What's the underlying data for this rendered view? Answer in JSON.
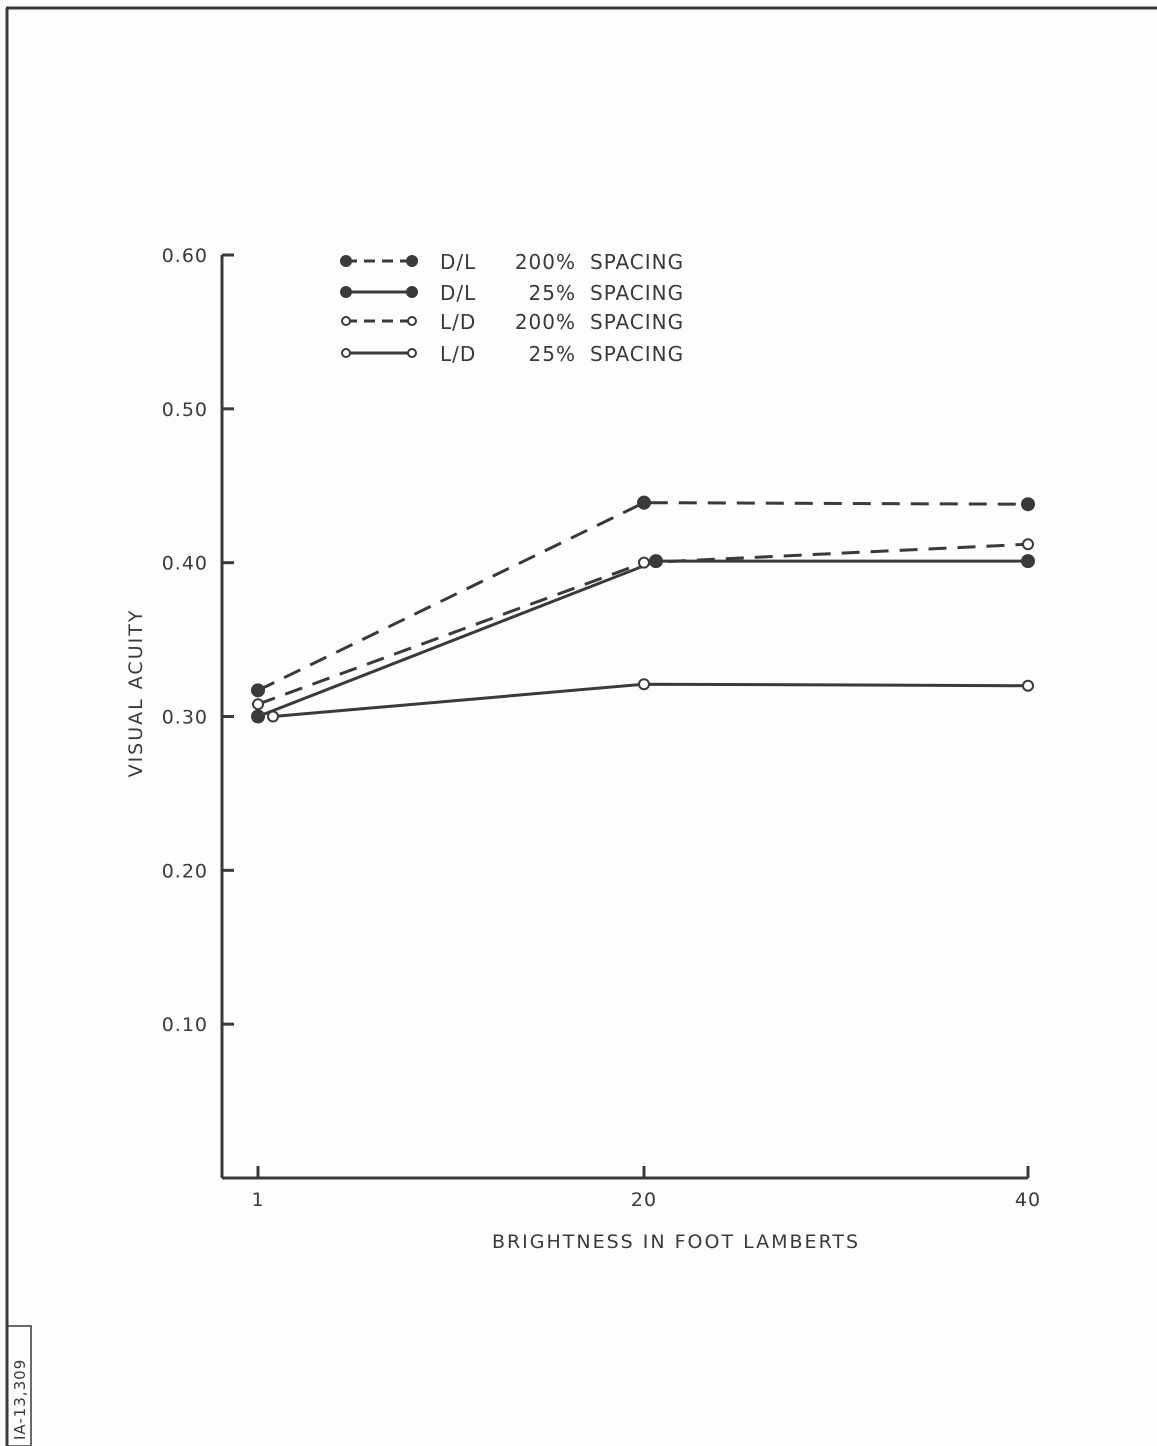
{
  "figure_id": "IA-13,309",
  "chart_data": {
    "type": "line",
    "xlabel": "BRIGHTNESS IN FOOT LAMBERTS",
    "ylabel": "VISUAL ACUITY",
    "categories": [
      "1",
      "20",
      "40"
    ],
    "y_ticks": [
      "0.10",
      "0.20",
      "0.30",
      "0.40",
      "0.50",
      "0.60"
    ],
    "y_tick_values": [
      0.1,
      0.2,
      0.3,
      0.4,
      0.5,
      0.6
    ],
    "ylim": [
      0.0,
      0.6
    ],
    "grid": false,
    "legend_position": "top-left",
    "series": [
      {
        "name": "D/L 200% SPACING",
        "legend_parts": [
          "D/L",
          "200%",
          "SPACING"
        ],
        "values": [
          0.317,
          0.439,
          0.438
        ],
        "line_style": "dashed",
        "marker": "filled-circle"
      },
      {
        "name": "D/L 25% SPACING",
        "legend_parts": [
          "D/L",
          "25%",
          "SPACING"
        ],
        "values": [
          0.3,
          0.401,
          0.401
        ],
        "line_style": "solid",
        "marker": "filled-circle"
      },
      {
        "name": "L/D 200% SPACING",
        "legend_parts": [
          "L/D",
          "200%",
          "SPACING"
        ],
        "values": [
          0.308,
          0.4,
          0.412
        ],
        "line_style": "dashed",
        "marker": "open-circle"
      },
      {
        "name": "L/D 25% SPACING",
        "legend_parts": [
          "L/D",
          "25%",
          "SPACING"
        ],
        "values": [
          0.3,
          0.321,
          0.32
        ],
        "line_style": "solid",
        "marker": "open-circle"
      }
    ]
  },
  "colors": {
    "ink": "#3a3a3a",
    "paper": "#fdfdfc"
  }
}
